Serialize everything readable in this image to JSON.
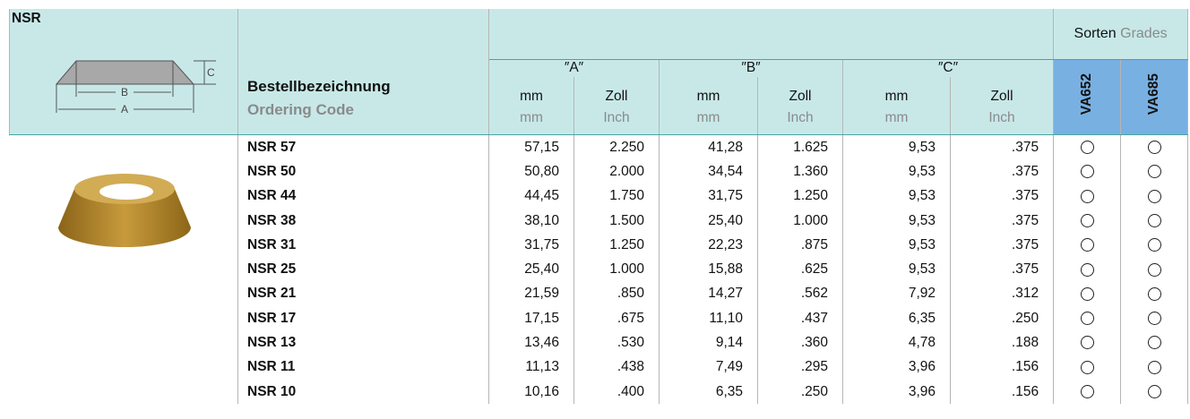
{
  "header": {
    "title": "NSR",
    "diagram": {
      "a": "A",
      "b": "B",
      "c": "C"
    },
    "code_label": "Bestellbezeichnung",
    "code_label_en": "Ordering Code",
    "groups": [
      "″A″",
      "″B″",
      "″C″"
    ],
    "units": {
      "mm": "mm",
      "zoll": "Zoll",
      "mm_en": "mm",
      "inch": "Inch"
    },
    "grades_title": "Sorten",
    "grades_title_en": "Grades",
    "grades": [
      "VA652",
      "VA685"
    ]
  },
  "table": {
    "rows": [
      [
        "NSR 57",
        "57,15",
        "2.250",
        "41,28",
        "1.625",
        "9,53",
        ".375"
      ],
      [
        "NSR 50",
        "50,80",
        "2.000",
        "34,54",
        "1.360",
        "9,53",
        ".375"
      ],
      [
        "NSR 44",
        "44,45",
        "1.750",
        "31,75",
        "1.250",
        "9,53",
        ".375"
      ],
      [
        "NSR 38",
        "38,10",
        "1.500",
        "25,40",
        "1.000",
        "9,53",
        ".375"
      ],
      [
        "NSR 31",
        "31,75",
        "1.250",
        "22,23",
        ".875",
        "9,53",
        ".375"
      ],
      [
        "NSR 25",
        "25,40",
        "1.000",
        "15,88",
        ".625",
        "9,53",
        ".375"
      ],
      [
        "NSR 21",
        "21,59",
        ".850",
        "14,27",
        ".562",
        "7,92",
        ".312"
      ],
      [
        "NSR 17",
        "17,15",
        ".675",
        "11,10",
        ".437",
        "6,35",
        ".250"
      ],
      [
        "NSR 13",
        "13,46",
        ".530",
        "9,14",
        ".360",
        "4,78",
        ".188"
      ],
      [
        "NSR 11",
        "11,13",
        ".438",
        "7,49",
        ".295",
        "3,96",
        ".156"
      ],
      [
        "NSR 10",
        "10,16",
        ".400",
        "6,35",
        ".250",
        "3,96",
        ".156"
      ]
    ]
  }
}
